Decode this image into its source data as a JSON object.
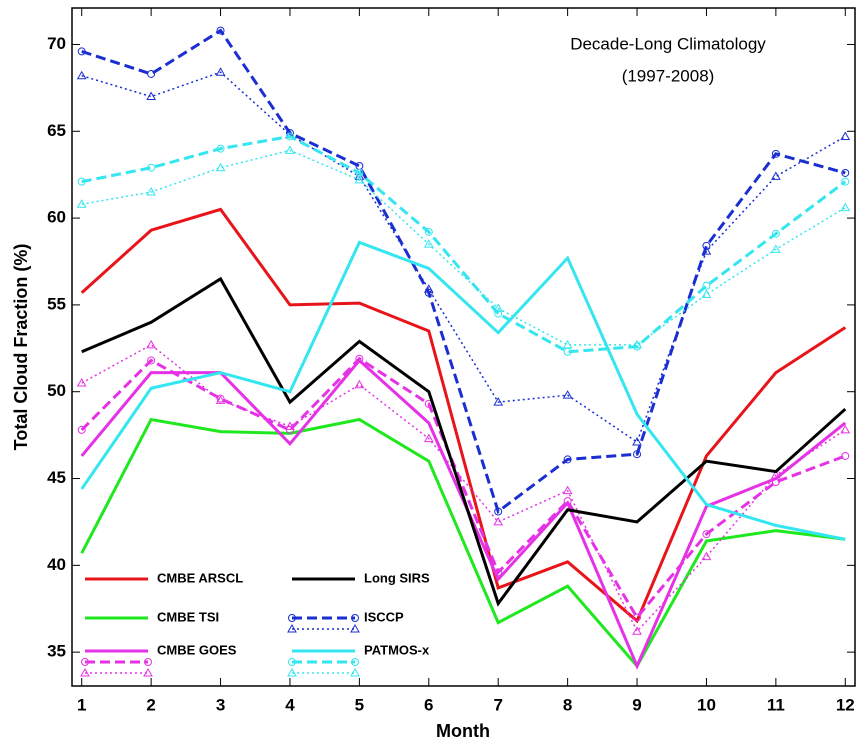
{
  "chart_data": {
    "type": "line",
    "annotation": [
      "Decade-Long Climatology",
      "(1997-2008)"
    ],
    "xlabel": "Month",
    "ylabel": "Total Cloud Fraction (%)",
    "x": [
      1,
      2,
      3,
      4,
      5,
      6,
      7,
      8,
      9,
      10,
      11,
      12
    ],
    "xlim": [
      0.86,
      12.14
    ],
    "xticks": [
      1,
      2,
      3,
      4,
      5,
      6,
      7,
      8,
      9,
      10,
      11,
      12
    ],
    "ylim": [
      33.05,
      72.1
    ],
    "yticks": [
      35,
      40,
      45,
      50,
      55,
      60,
      65,
      70
    ],
    "grid": false,
    "series": [
      {
        "name": "CMBE ARSCL",
        "color": "#e8141a",
        "linestyle": "solid",
        "values": [
          55.7,
          59.3,
          60.5,
          55.0,
          55.1,
          53.5,
          38.7,
          40.2,
          36.8,
          46.3,
          51.1,
          53.7
        ]
      },
      {
        "name": "CMBE TSI",
        "color": "#1fe81f",
        "linestyle": "solid",
        "values": [
          40.7,
          48.4,
          47.7,
          47.6,
          48.4,
          46.0,
          36.7,
          38.8,
          34.2,
          41.4,
          42.0,
          41.5
        ]
      },
      {
        "name": "CMBE GOES",
        "color": "#e632e6",
        "linestyle": "solid",
        "values": [
          46.3,
          51.1,
          51.1,
          47.0,
          51.8,
          48.2,
          39.2,
          43.6,
          34.2,
          43.4,
          45.0,
          48.2
        ]
      },
      {
        "color": "#e632e6",
        "linestyle": "dashed",
        "marker": "circle",
        "values": [
          47.8,
          51.8,
          49.6,
          47.8,
          51.9,
          49.3,
          39.6,
          43.7,
          37.0,
          41.8,
          44.8,
          46.3
        ]
      },
      {
        "color": "#e632e6",
        "linestyle": "dotted",
        "marker": "triangle",
        "values": [
          50.5,
          52.7,
          49.5,
          48.0,
          50.4,
          47.3,
          42.5,
          44.3,
          36.2,
          40.5,
          45.2,
          47.8
        ]
      },
      {
        "name": "Long SIRS",
        "color": "#000000",
        "linestyle": "solid",
        "values": [
          52.3,
          54.0,
          56.5,
          49.4,
          52.9,
          50.0,
          37.8,
          43.2,
          42.5,
          46.0,
          45.4,
          49.0
        ]
      },
      {
        "name": "ISCCP",
        "color": "#1a2ed2",
        "linestyle": "dashed",
        "marker": "circle",
        "values": [
          69.6,
          68.3,
          70.8,
          64.9,
          63.0,
          55.7,
          43.1,
          46.1,
          46.4,
          58.4,
          63.7,
          62.6
        ]
      },
      {
        "color": "#1a2ed2",
        "linestyle": "dotted",
        "marker": "triangle",
        "values": [
          68.2,
          67.0,
          68.4,
          64.8,
          62.4,
          55.9,
          49.4,
          49.8,
          47.1,
          58.1,
          62.4,
          64.7
        ]
      },
      {
        "name": "PATMOS-x",
        "color": "#33e6f0",
        "linestyle": "solid",
        "values": [
          44.4,
          50.2,
          51.1,
          50.0,
          58.6,
          57.1,
          53.4,
          57.7,
          48.7,
          43.5,
          42.3,
          41.5
        ]
      },
      {
        "color": "#33e6f0",
        "linestyle": "dashed",
        "marker": "circle",
        "values": [
          62.1,
          62.9,
          64.0,
          64.7,
          62.6,
          59.2,
          54.5,
          52.3,
          52.6,
          56.1,
          59.1,
          62.1
        ]
      },
      {
        "color": "#33e6f0",
        "linestyle": "dotted",
        "marker": "triangle",
        "values": [
          60.8,
          61.5,
          62.9,
          63.9,
          62.2,
          58.5,
          54.8,
          52.7,
          52.7,
          55.6,
          58.2,
          60.6
        ]
      }
    ]
  }
}
